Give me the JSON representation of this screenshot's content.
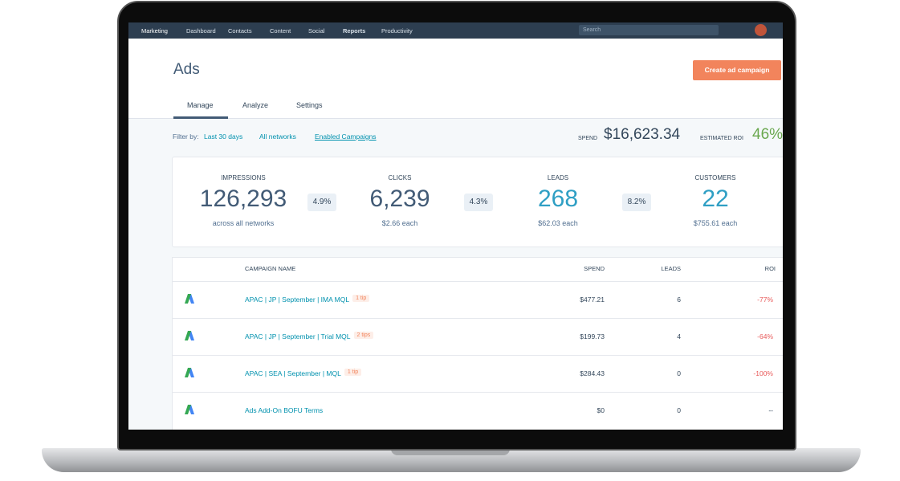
{
  "nav": {
    "brand": "Marketing",
    "items": [
      "Dashboard",
      "Contacts",
      "Content",
      "Social",
      "Reports",
      "Productivity"
    ],
    "search": "Search"
  },
  "header": {
    "title": "Ads",
    "button": "Create ad campaign"
  },
  "tabs": [
    "Manage",
    "Analyze",
    "Settings"
  ],
  "filter": {
    "label": "Filter by:",
    "options": [
      "Last 30 days",
      "All networks",
      "Enabled Campaigns"
    ]
  },
  "summary": {
    "spend_label": "SPEND",
    "spend": "$16,623.34",
    "roi_label": "ESTIMATED ROI",
    "roi": "46%"
  },
  "metrics": [
    {
      "label": "IMPRESSIONS",
      "value": "126,293",
      "sub": "across all networks"
    },
    {
      "label": "CLICKS",
      "value": "6,239",
      "sub": "$2.66 each"
    },
    {
      "label": "LEADS",
      "value": "268",
      "sub": "$62.03 each"
    },
    {
      "label": "CUSTOMERS",
      "value": "22",
      "sub": "$755.61 each"
    }
  ],
  "rates": [
    "4.9%",
    "4.3%",
    "8.2%"
  ],
  "table": {
    "columns": [
      "CAMPAIGN NAME",
      "SPEND",
      "LEADS",
      "ROI"
    ],
    "rows": [
      {
        "name": "APAC | JP | September | IMA MQL",
        "tip": "1 tip",
        "spend": "$477.21",
        "leads": "6",
        "roi": "-77%"
      },
      {
        "name": "APAC | JP | September | Trial MQL",
        "tip": "2 tips",
        "spend": "$199.73",
        "leads": "4",
        "roi": "-64%"
      },
      {
        "name": "APAC | SEA | September | MQL",
        "tip": "1 tip",
        "spend": "$284.43",
        "leads": "0",
        "roi": "-100%"
      },
      {
        "name": "Ads Add-On BOFU Terms",
        "spend": "$0",
        "leads": "0",
        "roi": "--"
      }
    ]
  }
}
